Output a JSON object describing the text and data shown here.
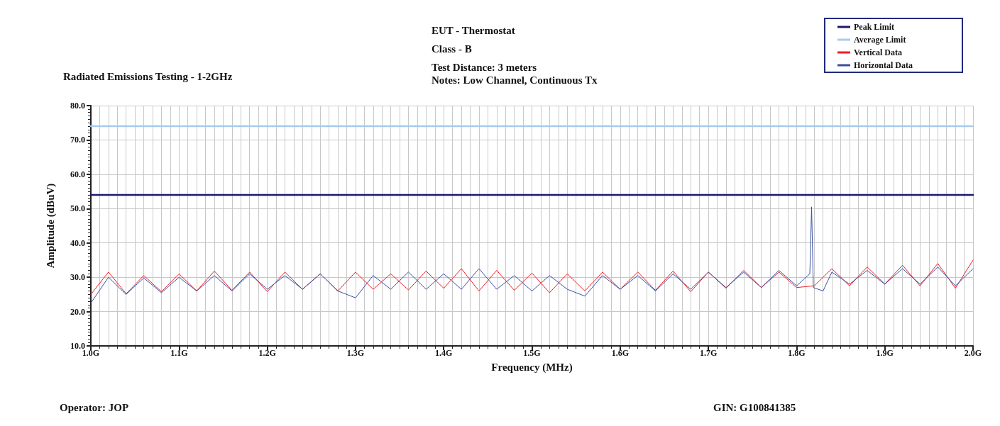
{
  "chart_data": {
    "type": "line",
    "title": "Radiated Emissions Testing - 1-2GHz",
    "xlabel": "Frequency (MHz)",
    "ylabel": "Amplitude (dBuV)",
    "annotations": [
      "EUT - Thermostat",
      "Class - B",
      "Test Distance: 3 meters",
      "Notes: Low Channel, Continuous Tx",
      "GIN: G100841385",
      "Operator: JOP"
    ],
    "xlim": [
      1.0,
      2.0
    ],
    "xticks": [
      {
        "value": 1.0,
        "label": "1.0G"
      },
      {
        "value": 1.1,
        "label": "1.1G"
      },
      {
        "value": 1.2,
        "label": "1.2G"
      },
      {
        "value": 1.3,
        "label": "1.3G"
      },
      {
        "value": 1.4,
        "label": "1.4G"
      },
      {
        "value": 1.5,
        "label": "1.5G"
      },
      {
        "value": 1.6,
        "label": "1.6G"
      },
      {
        "value": 1.7,
        "label": "1.7G"
      },
      {
        "value": 1.8,
        "label": "1.8G"
      },
      {
        "value": 1.9,
        "label": "1.9G"
      },
      {
        "value": 2.0,
        "label": "2.0G"
      }
    ],
    "ylim": [
      10,
      80
    ],
    "yticks": [
      {
        "value": 10,
        "label": "10.0"
      },
      {
        "value": 20,
        "label": "20.0"
      },
      {
        "value": 30,
        "label": "30.0"
      },
      {
        "value": 40,
        "label": "40.0"
      },
      {
        "value": 50,
        "label": "50.0"
      },
      {
        "value": 60,
        "label": "60.0"
      },
      {
        "value": 70,
        "label": "70.0"
      },
      {
        "value": 80,
        "label": "80.0"
      }
    ],
    "grid": true,
    "legend": "top right",
    "marker": "none",
    "line_style": "solid",
    "series": [
      {
        "name": "Peak Limit",
        "color": "#1a1a6e",
        "x": [
          1.0,
          2.0
        ],
        "values": [
          54,
          54
        ]
      },
      {
        "name": "Average Limit",
        "color": "#a6cbef",
        "x": [
          1.0,
          2.0
        ],
        "values": [
          74,
          74
        ]
      },
      {
        "name": "Vertical Data",
        "color": "#ee1c25",
        "x": [
          1.0,
          1.02,
          1.04,
          1.06,
          1.08,
          1.1,
          1.12,
          1.14,
          1.16,
          1.18,
          1.2,
          1.22,
          1.24,
          1.26,
          1.28,
          1.3,
          1.32,
          1.34,
          1.36,
          1.38,
          1.4,
          1.42,
          1.44,
          1.46,
          1.48,
          1.5,
          1.52,
          1.54,
          1.56,
          1.58,
          1.6,
          1.62,
          1.64,
          1.66,
          1.68,
          1.7,
          1.72,
          1.74,
          1.76,
          1.78,
          1.8,
          1.82,
          1.84,
          1.86,
          1.88,
          1.9,
          1.92,
          1.94,
          1.96,
          1.98,
          2.0
        ],
        "values": [
          25.0,
          31.5,
          25.2,
          30.5,
          25.8,
          31.0,
          26.0,
          31.8,
          26.2,
          31.5,
          25.8,
          31.5,
          26.5,
          31.0,
          26.0,
          31.5,
          26.5,
          31.0,
          26.3,
          31.8,
          26.8,
          32.5,
          26.0,
          32.0,
          26.2,
          31.2,
          25.5,
          31.0,
          26.0,
          31.5,
          26.5,
          31.5,
          26.2,
          31.8,
          25.8,
          31.5,
          26.8,
          32.0,
          27.0,
          31.5,
          27.0,
          27.5,
          32.5,
          27.5,
          33.0,
          28.0,
          33.5,
          27.5,
          34.0,
          26.8,
          35.0
        ]
      },
      {
        "name": "Horizontal Data",
        "color": "#3a4fa0",
        "x": [
          1.0,
          1.02,
          1.04,
          1.06,
          1.08,
          1.1,
          1.12,
          1.14,
          1.16,
          1.18,
          1.2,
          1.22,
          1.24,
          1.26,
          1.28,
          1.3,
          1.32,
          1.34,
          1.36,
          1.38,
          1.4,
          1.42,
          1.44,
          1.46,
          1.48,
          1.5,
          1.52,
          1.54,
          1.56,
          1.58,
          1.6,
          1.62,
          1.64,
          1.66,
          1.68,
          1.7,
          1.72,
          1.74,
          1.76,
          1.78,
          1.8,
          1.815,
          1.817,
          1.819,
          1.83,
          1.84,
          1.86,
          1.88,
          1.9,
          1.92,
          1.94,
          1.96,
          1.98,
          2.0
        ],
        "values": [
          22.5,
          30.0,
          25.0,
          29.8,
          25.5,
          30.0,
          26.0,
          30.5,
          26.0,
          31.0,
          26.5,
          30.5,
          26.5,
          31.0,
          26.0,
          24.0,
          30.5,
          26.5,
          31.5,
          26.5,
          31.0,
          26.5,
          32.5,
          26.5,
          30.5,
          26.0,
          30.5,
          26.5,
          24.5,
          30.5,
          26.5,
          30.5,
          26.0,
          31.0,
          26.5,
          31.5,
          27.0,
          31.5,
          27.0,
          32.0,
          27.5,
          31.0,
          50.5,
          27.0,
          26.0,
          31.5,
          28.0,
          32.0,
          28.0,
          32.5,
          28.0,
          33.0,
          27.5,
          32.5
        ]
      }
    ]
  }
}
